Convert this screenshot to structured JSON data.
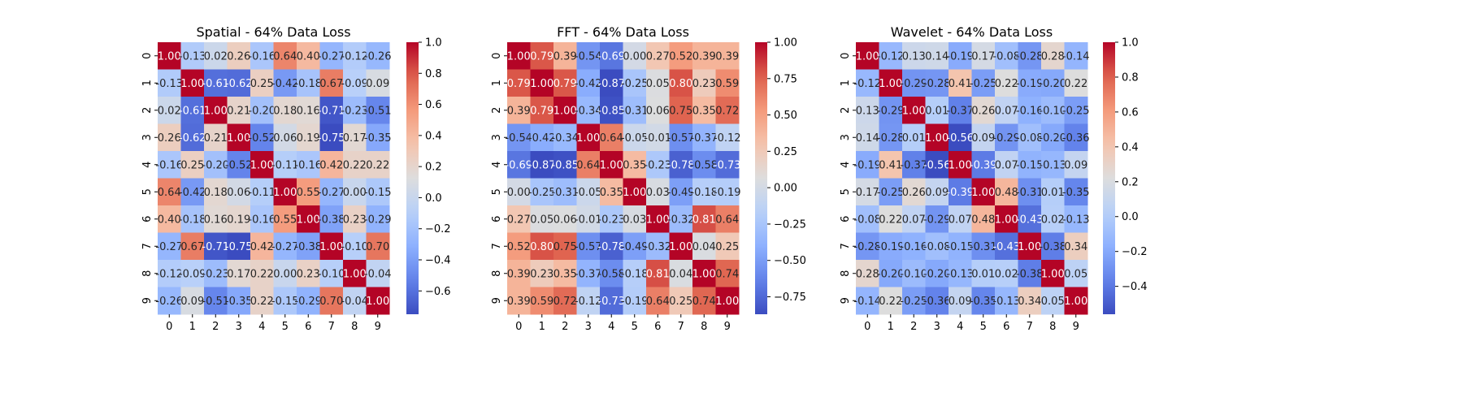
{
  "chart_data": [
    {
      "type": "heatmap",
      "title": "Spatial - 64% Data Loss",
      "x_labels": [
        "0",
        "1",
        "2",
        "3",
        "4",
        "5",
        "6",
        "7",
        "8",
        "9"
      ],
      "y_labels": [
        "0",
        "1",
        "2",
        "3",
        "4",
        "5",
        "6",
        "7",
        "8",
        "9"
      ],
      "values": [
        [
          1.0,
          -0.13,
          0.02,
          0.26,
          -0.16,
          0.64,
          0.4,
          -0.27,
          -0.12,
          -0.26
        ],
        [
          -0.13,
          1.0,
          -0.61,
          -0.62,
          0.25,
          -0.42,
          -0.18,
          0.67,
          -0.09,
          0.09
        ],
        [
          0.02,
          -0.61,
          1.0,
          0.21,
          -0.2,
          0.18,
          0.16,
          -0.71,
          -0.23,
          -0.51
        ],
        [
          0.26,
          -0.62,
          0.21,
          1.0,
          -0.52,
          0.06,
          0.19,
          -0.75,
          0.17,
          -0.35
        ],
        [
          -0.16,
          0.25,
          -0.2,
          -0.52,
          1.0,
          -0.11,
          -0.16,
          0.42,
          0.22,
          0.22
        ],
        [
          0.64,
          -0.42,
          0.18,
          0.06,
          -0.11,
          1.0,
          0.55,
          -0.27,
          0.0,
          -0.15
        ],
        [
          0.4,
          -0.18,
          0.16,
          0.19,
          -0.16,
          0.55,
          1.0,
          -0.38,
          0.23,
          -0.29
        ],
        [
          -0.27,
          0.67,
          -0.71,
          -0.75,
          0.42,
          -0.27,
          -0.38,
          1.0,
          -0.1,
          0.7
        ],
        [
          -0.12,
          -0.09,
          -0.23,
          0.17,
          0.22,
          0.0,
          0.23,
          -0.1,
          1.0,
          -0.04
        ],
        [
          -0.26,
          0.09,
          -0.51,
          -0.35,
          0.22,
          -0.15,
          -0.29,
          0.7,
          -0.04,
          1.0
        ]
      ],
      "color_range": [
        -0.75,
        1.0
      ],
      "colorbar_ticks": [
        1.0,
        0.8,
        0.6,
        0.4,
        0.2,
        0.0,
        -0.2,
        -0.4,
        -0.6
      ],
      "colorbar_tick_labels": [
        "1.0",
        "0.8",
        "0.6",
        "0.4",
        "0.2",
        "0.0",
        "−0.2",
        "−0.4",
        "−0.6"
      ],
      "colormap": "coolwarm"
    },
    {
      "type": "heatmap",
      "title": "FFT - 64% Data Loss",
      "x_labels": [
        "0",
        "1",
        "2",
        "3",
        "4",
        "5",
        "6",
        "7",
        "8",
        "9"
      ],
      "y_labels": [
        "0",
        "1",
        "2",
        "3",
        "4",
        "5",
        "6",
        "7",
        "8",
        "9"
      ],
      "values": [
        [
          1.0,
          0.79,
          0.39,
          -0.54,
          -0.69,
          -0.0,
          0.27,
          0.52,
          0.39,
          0.39
        ],
        [
          0.79,
          1.0,
          0.79,
          -0.42,
          -0.87,
          -0.25,
          0.05,
          0.8,
          0.23,
          0.59
        ],
        [
          0.39,
          0.79,
          1.0,
          -0.34,
          -0.85,
          -0.31,
          0.06,
          0.75,
          0.35,
          0.72
        ],
        [
          -0.54,
          -0.42,
          -0.34,
          1.0,
          0.64,
          -0.05,
          -0.01,
          -0.57,
          -0.37,
          -0.12
        ],
        [
          -0.69,
          -0.87,
          -0.85,
          0.64,
          1.0,
          0.35,
          -0.23,
          -0.78,
          -0.58,
          -0.73
        ],
        [
          -0.0,
          -0.25,
          -0.31,
          -0.05,
          0.35,
          1.0,
          0.03,
          -0.49,
          -0.18,
          -0.19
        ],
        [
          0.27,
          0.05,
          0.06,
          -0.01,
          -0.23,
          0.03,
          1.0,
          -0.32,
          0.81,
          0.64
        ],
        [
          0.52,
          0.8,
          0.75,
          -0.57,
          -0.78,
          -0.49,
          -0.32,
          1.0,
          0.04,
          0.25
        ],
        [
          0.39,
          0.23,
          0.35,
          -0.37,
          -0.58,
          -0.18,
          0.81,
          0.04,
          1.0,
          0.74
        ],
        [
          0.39,
          0.59,
          0.72,
          -0.12,
          -0.73,
          -0.19,
          0.64,
          0.25,
          0.74,
          1.0
        ]
      ],
      "color_range": [
        -0.87,
        1.0
      ],
      "colorbar_ticks": [
        1.0,
        0.75,
        0.5,
        0.25,
        0.0,
        -0.25,
        -0.5,
        -0.75
      ],
      "colorbar_tick_labels": [
        "1.00",
        "0.75",
        "0.50",
        "0.25",
        "0.00",
        "−0.25",
        "−0.50",
        "−0.75"
      ],
      "colormap": "coolwarm"
    },
    {
      "type": "heatmap",
      "title": "Wavelet - 64% Data Loss",
      "x_labels": [
        "0",
        "1",
        "2",
        "3",
        "4",
        "5",
        "6",
        "7",
        "8",
        "9"
      ],
      "y_labels": [
        "0",
        "1",
        "2",
        "3",
        "4",
        "5",
        "6",
        "7",
        "8",
        "9"
      ],
      "values": [
        [
          1.0,
          -0.12,
          0.13,
          0.14,
          -0.19,
          0.17,
          -0.08,
          -0.28,
          0.28,
          -0.14
        ],
        [
          -0.12,
          1.0,
          -0.29,
          -0.28,
          0.41,
          -0.25,
          0.22,
          -0.19,
          -0.2,
          0.22
        ],
        [
          0.13,
          -0.29,
          1.0,
          0.01,
          -0.37,
          0.26,
          0.07,
          -0.16,
          -0.1,
          -0.25
        ],
        [
          0.14,
          -0.28,
          0.01,
          1.0,
          -0.56,
          0.09,
          -0.29,
          -0.08,
          -0.2,
          -0.36
        ],
        [
          -0.19,
          0.41,
          -0.37,
          -0.56,
          1.0,
          -0.39,
          0.07,
          -0.15,
          -0.13,
          0.09
        ],
        [
          0.17,
          -0.25,
          0.26,
          0.09,
          -0.39,
          1.0,
          0.48,
          -0.31,
          0.01,
          -0.35
        ],
        [
          -0.08,
          0.22,
          0.07,
          -0.29,
          0.07,
          0.48,
          1.0,
          -0.43,
          0.02,
          -0.13
        ],
        [
          -0.28,
          -0.19,
          -0.16,
          -0.08,
          -0.15,
          -0.31,
          -0.43,
          1.0,
          -0.38,
          0.34
        ],
        [
          0.28,
          -0.2,
          -0.1,
          -0.2,
          -0.13,
          0.01,
          0.02,
          -0.38,
          1.0,
          0.05
        ],
        [
          -0.14,
          0.22,
          -0.25,
          -0.36,
          0.09,
          -0.35,
          -0.13,
          0.34,
          0.05,
          1.0
        ]
      ],
      "color_range": [
        -0.56,
        1.0
      ],
      "colorbar_ticks": [
        1.0,
        0.8,
        0.6,
        0.4,
        0.2,
        0.0,
        -0.2,
        -0.4
      ],
      "colorbar_tick_labels": [
        "1.0",
        "0.8",
        "0.6",
        "0.4",
        "0.2",
        "0.0",
        "−0.2",
        "−0.4"
      ],
      "colormap": "coolwarm"
    }
  ]
}
